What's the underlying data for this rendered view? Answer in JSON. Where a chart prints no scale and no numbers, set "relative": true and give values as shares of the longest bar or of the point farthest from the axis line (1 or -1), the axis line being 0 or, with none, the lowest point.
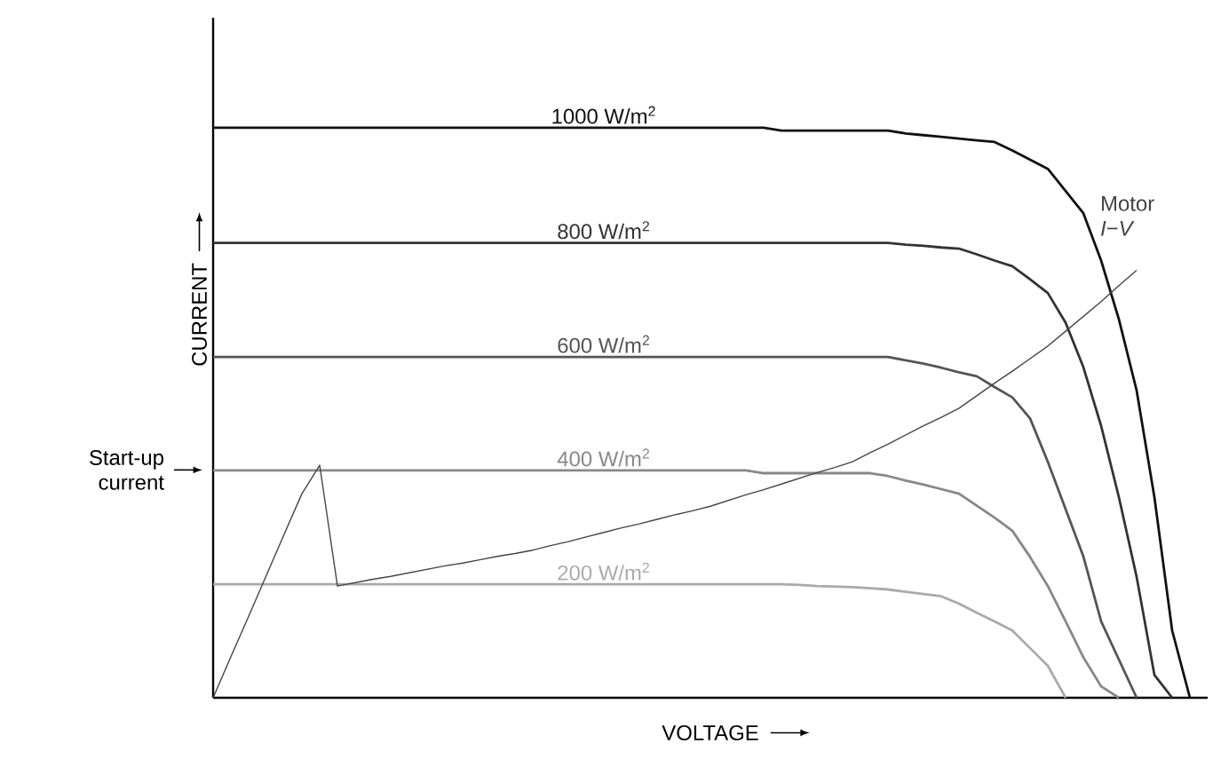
{
  "chart_data": {
    "type": "line",
    "relative": true,
    "xlabel": "VOLTAGE",
    "ylabel": "CURRENT",
    "marker": "none",
    "line_style": "solid",
    "categories": [
      null,
      null,
      null,
      null,
      null,
      null,
      null,
      null,
      null,
      null,
      null,
      null,
      null,
      null,
      null,
      null,
      null,
      null,
      null,
      null,
      null,
      null,
      null,
      null,
      null,
      null,
      null,
      null,
      null,
      null,
      null,
      null,
      null,
      null,
      null,
      null,
      null,
      null,
      null,
      null,
      null,
      null,
      null,
      null,
      null,
      null,
      null,
      null,
      null,
      null,
      null,
      null,
      null,
      null,
      null,
      null,
      null
    ],
    "annotations": [
      "Start-up current"
    ],
    "series": [
      {
        "name": "1000 W/m$^{2}$",
        "color": "#111111",
        "values": [
          1.0,
          1.0,
          1.0,
          1.0,
          1.0,
          1.0,
          1.0,
          1.0,
          1.0,
          1.0,
          1.0,
          1.0,
          1.0,
          1.0,
          1.0,
          1.0,
          1.0,
          1.0,
          1.0,
          1.0,
          1.0,
          1.0,
          1.0,
          1.0,
          1.0,
          1.0,
          1.0,
          1.0,
          1.0,
          1.0,
          1.0,
          1.0,
          0.995,
          0.995,
          0.995,
          0.995,
          0.995,
          0.995,
          0.995,
          0.99,
          0.987,
          0.984,
          0.981,
          0.978,
          0.975,
          0.96,
          0.944,
          0.928,
          0.889,
          0.85,
          0.767,
          0.664,
          0.539,
          0.352,
          0.118,
          0,
          null
        ]
      },
      {
        "name": "800 W/m$^{2}$",
        "color": "#333333",
        "values": [
          0.798,
          0.798,
          0.798,
          0.798,
          0.798,
          0.798,
          0.798,
          0.798,
          0.798,
          0.798,
          0.798,
          0.798,
          0.798,
          0.798,
          0.798,
          0.798,
          0.798,
          0.798,
          0.798,
          0.798,
          0.798,
          0.798,
          0.798,
          0.798,
          0.798,
          0.798,
          0.798,
          0.798,
          0.798,
          0.798,
          0.798,
          0.798,
          0.798,
          0.798,
          0.798,
          0.798,
          0.798,
          0.798,
          0.798,
          0.795,
          0.793,
          0.79,
          0.788,
          0.778,
          0.767,
          0.757,
          0.734,
          0.71,
          0.658,
          0.58,
          0.477,
          0.352,
          0.212,
          0.04,
          0,
          null,
          null
        ]
      },
      {
        "name": "600 W/m$^{2}$",
        "color": "#555555",
        "values": [
          0.598,
          0.598,
          0.598,
          0.598,
          0.598,
          0.598,
          0.598,
          0.598,
          0.598,
          0.598,
          0.598,
          0.598,
          0.598,
          0.598,
          0.598,
          0.598,
          0.598,
          0.598,
          0.598,
          0.598,
          0.598,
          0.598,
          0.598,
          0.598,
          0.598,
          0.598,
          0.598,
          0.598,
          0.598,
          0.598,
          0.598,
          0.598,
          0.598,
          0.598,
          0.598,
          0.598,
          0.598,
          0.598,
          0.598,
          0.592,
          0.586,
          0.579,
          0.571,
          0.564,
          0.545,
          0.527,
          0.49,
          0.414,
          0.331,
          0.248,
          0.134,
          0.067,
          0,
          null,
          null,
          null,
          null
        ]
      },
      {
        "name": "400 W/m$^{2}$",
        "color": "#888888",
        "values": [
          0.399,
          0.399,
          0.399,
          0.399,
          0.399,
          0.399,
          0.399,
          0.399,
          0.399,
          0.399,
          0.399,
          0.399,
          0.399,
          0.399,
          0.399,
          0.399,
          0.399,
          0.399,
          0.399,
          0.399,
          0.399,
          0.399,
          0.399,
          0.399,
          0.399,
          0.399,
          0.399,
          0.399,
          0.399,
          0.399,
          0.399,
          0.394,
          0.394,
          0.394,
          0.394,
          0.394,
          0.394,
          0.394,
          0.389,
          0.381,
          0.374,
          0.366,
          0.358,
          0.337,
          0.316,
          0.293,
          0.247,
          0.196,
          0.134,
          0.071,
          0.02,
          0,
          null,
          null,
          null,
          null,
          null
        ]
      },
      {
        "name": "200 W/m$^{2}$",
        "color": "#aaaaaa",
        "values": [
          0.199,
          0.199,
          0.199,
          0.199,
          0.199,
          0.199,
          0.199,
          0.199,
          0.199,
          0.199,
          0.199,
          0.199,
          0.199,
          0.199,
          0.199,
          0.199,
          0.199,
          0.199,
          0.199,
          0.199,
          0.199,
          0.199,
          0.199,
          0.199,
          0.199,
          0.199,
          0.199,
          0.199,
          0.199,
          0.199,
          0.199,
          0.199,
          0.199,
          0.198,
          0.196,
          0.195,
          0.194,
          0.192,
          0.19,
          0.186,
          0.182,
          0.178,
          0.165,
          0.149,
          0.134,
          0.118,
          0.087,
          0.056,
          0,
          null,
          null,
          null,
          null,
          null,
          null,
          null,
          null
        ]
      },
      {
        "name": "Motor *I*−*V*",
        "color": "#444444",
        "values": [
          0,
          0.072,
          0.143,
          0.215,
          0.287,
          0.358,
          0.408,
          0.196,
          0.202,
          0.208,
          0.213,
          0.219,
          0.225,
          0.231,
          0.236,
          0.242,
          0.248,
          0.253,
          0.259,
          0.267,
          0.274,
          0.282,
          0.29,
          0.298,
          0.305,
          0.313,
          0.321,
          0.328,
          0.336,
          0.346,
          0.356,
          0.365,
          0.375,
          0.385,
          0.395,
          0.404,
          0.414,
          0.43,
          0.445,
          0.461,
          0.477,
          0.492,
          0.508,
          0.53,
          0.552,
          0.573,
          0.595,
          0.617,
          0.643,
          0.669,
          0.695,
          0.723,
          0.75,
          null,
          null,
          null,
          null
        ]
      }
    ]
  }
}
